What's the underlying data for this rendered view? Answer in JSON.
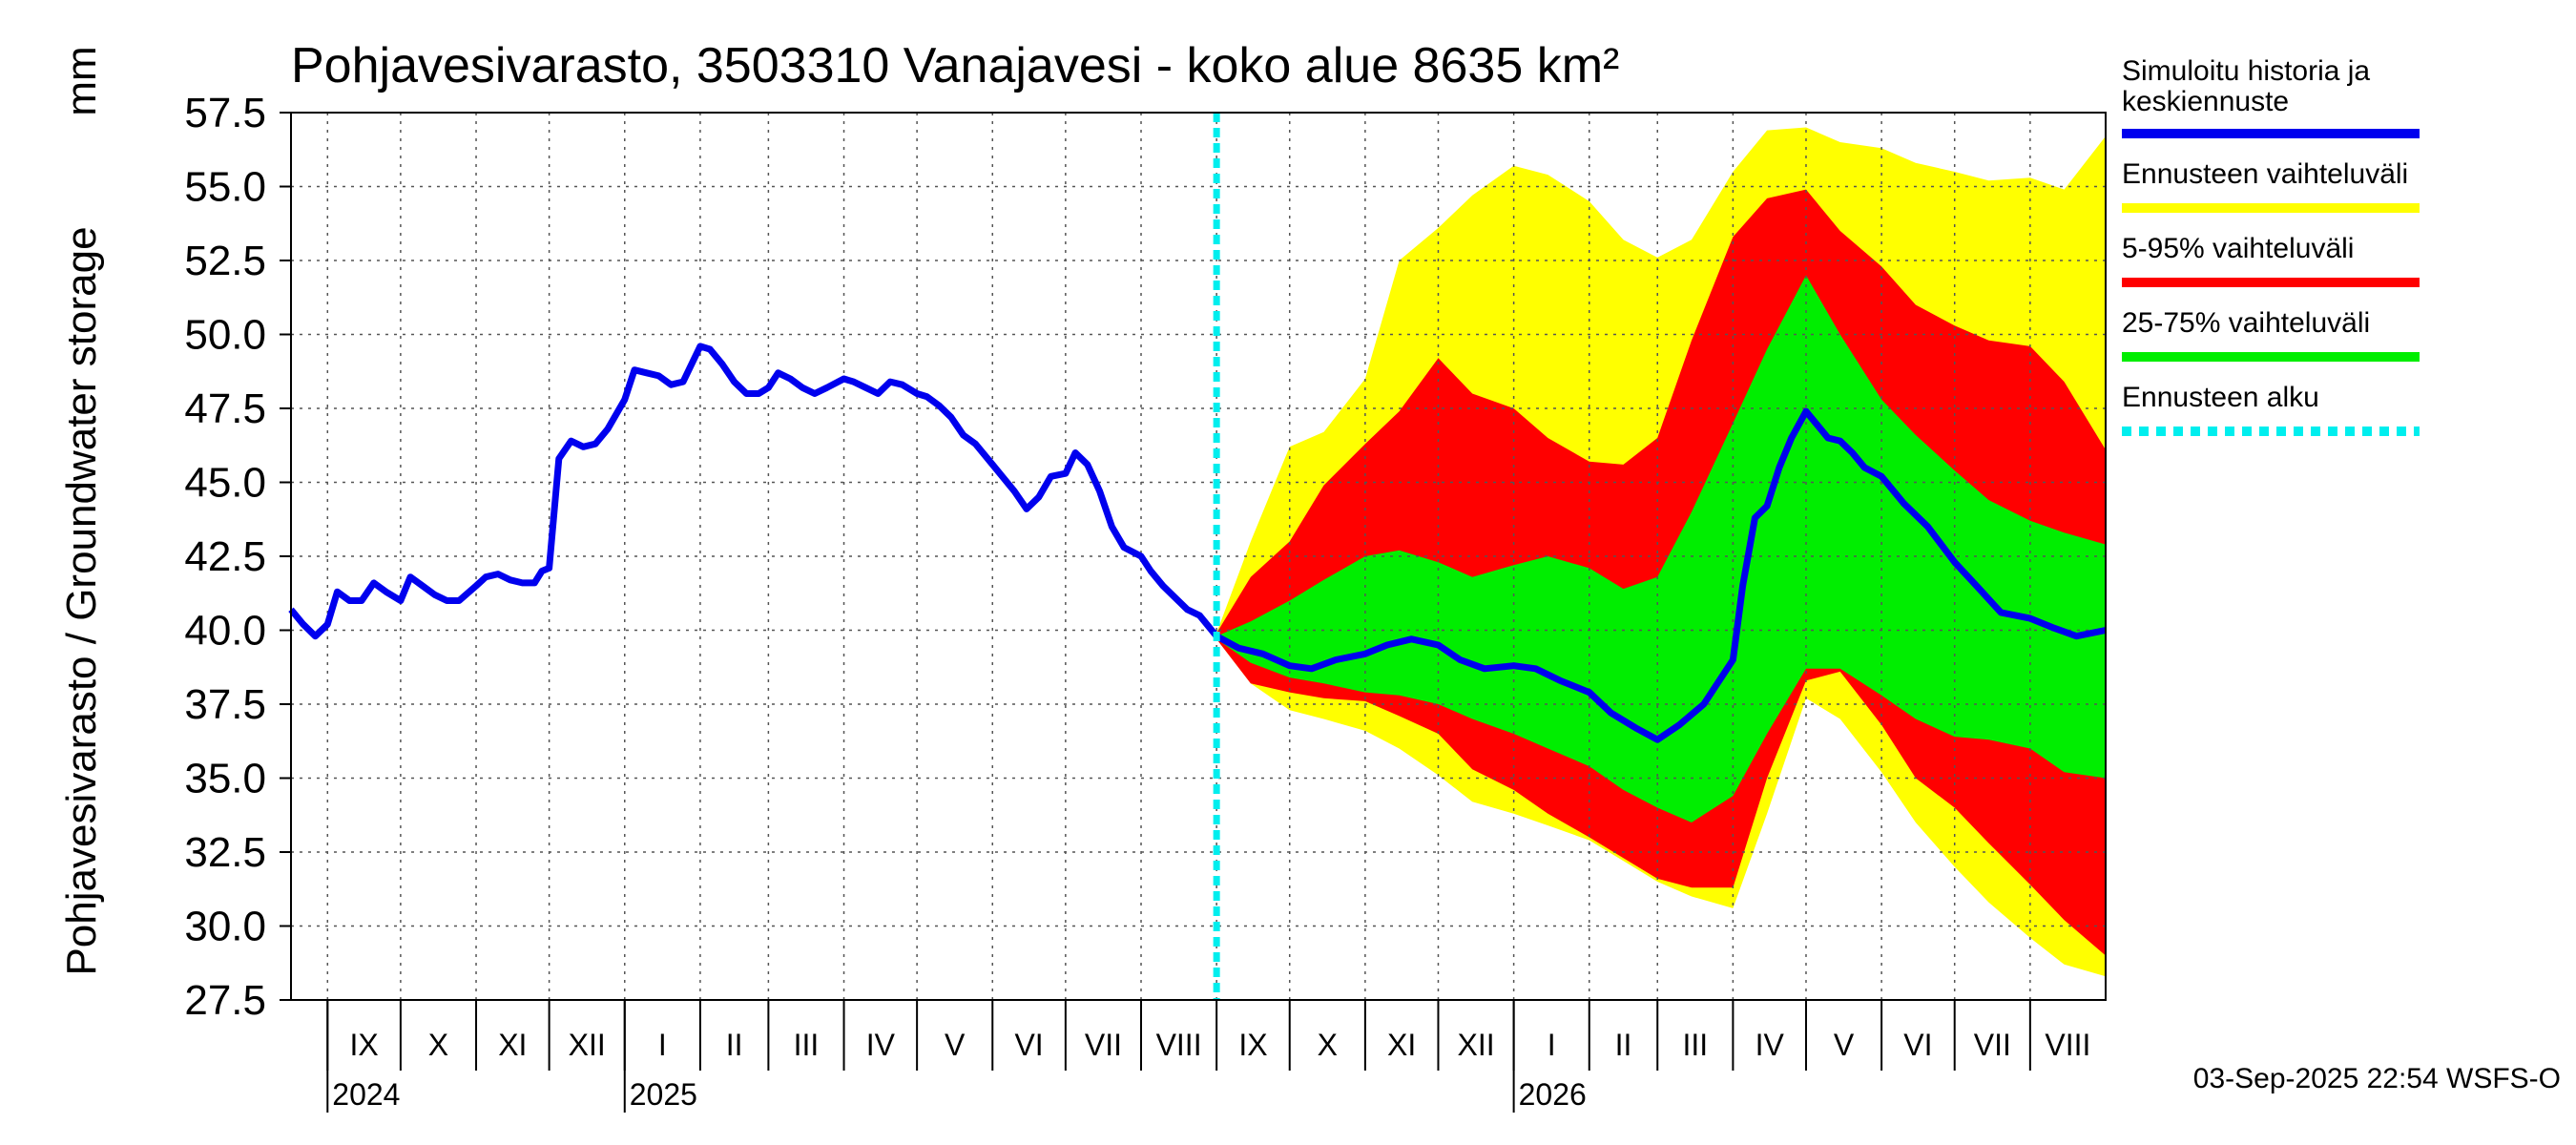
{
  "chart_data": {
    "type": "area",
    "title": "Pohjavesivarasto, 3503310 Vanajavesi - koko alue 8635 km²",
    "ylabel": "Pohjavesivarasto / Groundwater storage",
    "yunit": "mm",
    "ylim": [
      27.5,
      57.5
    ],
    "yticks": [
      "27.5",
      "30.0",
      "32.5",
      "35.0",
      "37.5",
      "40.0",
      "42.5",
      "45.0",
      "47.5",
      "50.0",
      "52.5",
      "55.0",
      "57.5"
    ],
    "xlim": [
      "2024-08-17",
      "2026-09-01"
    ],
    "grid": true,
    "months": [
      {
        "label": "IX",
        "start": "2024-09-01"
      },
      {
        "label": "X",
        "start": "2024-10-01"
      },
      {
        "label": "XI",
        "start": "2024-11-01"
      },
      {
        "label": "XII",
        "start": "2024-12-01"
      },
      {
        "label": "I",
        "start": "2025-01-01"
      },
      {
        "label": "II",
        "start": "2025-02-01"
      },
      {
        "label": "III",
        "start": "2025-03-01"
      },
      {
        "label": "IV",
        "start": "2025-04-01"
      },
      {
        "label": "V",
        "start": "2025-05-01"
      },
      {
        "label": "VI",
        "start": "2025-06-01"
      },
      {
        "label": "VII",
        "start": "2025-07-01"
      },
      {
        "label": "VIII",
        "start": "2025-08-01"
      },
      {
        "label": "IX",
        "start": "2025-09-01"
      },
      {
        "label": "X",
        "start": "2025-10-01"
      },
      {
        "label": "XI",
        "start": "2025-11-01"
      },
      {
        "label": "XII",
        "start": "2025-12-01"
      },
      {
        "label": "I",
        "start": "2026-01-01"
      },
      {
        "label": "II",
        "start": "2026-02-01"
      },
      {
        "label": "III",
        "start": "2026-03-01"
      },
      {
        "label": "IV",
        "start": "2026-04-01"
      },
      {
        "label": "V",
        "start": "2026-05-01"
      },
      {
        "label": "VI",
        "start": "2026-06-01"
      },
      {
        "label": "VII",
        "start": "2026-07-01"
      },
      {
        "label": "VIII",
        "start": "2026-08-01"
      }
    ],
    "years": [
      {
        "label": "2024",
        "date": "2024-09-01"
      },
      {
        "label": "2025",
        "date": "2025-01-01"
      },
      {
        "label": "2026",
        "date": "2026-01-01"
      }
    ],
    "forecast_start": "2025-09-01",
    "history": {
      "x": [
        "2024-08-17",
        "2024-08-22",
        "2024-08-27",
        "2024-09-01",
        "2024-09-05",
        "2024-09-10",
        "2024-09-15",
        "2024-09-20",
        "2024-09-25",
        "2024-10-01",
        "2024-10-05",
        "2024-10-10",
        "2024-10-15",
        "2024-10-20",
        "2024-10-25",
        "2024-11-01",
        "2024-11-05",
        "2024-11-10",
        "2024-11-15",
        "2024-11-20",
        "2024-11-25",
        "2024-11-28",
        "2024-12-01",
        "2024-12-05",
        "2024-12-10",
        "2024-12-15",
        "2024-12-20",
        "2024-12-25",
        "2025-01-01",
        "2025-01-05",
        "2025-01-10",
        "2025-01-15",
        "2025-01-20",
        "2025-01-25",
        "2025-02-01",
        "2025-02-05",
        "2025-02-10",
        "2025-02-15",
        "2025-02-20",
        "2025-02-25",
        "2025-03-01",
        "2025-03-05",
        "2025-03-10",
        "2025-03-15",
        "2025-03-20",
        "2025-03-25",
        "2025-04-01",
        "2025-04-05",
        "2025-04-10",
        "2025-04-15",
        "2025-04-20",
        "2025-04-25",
        "2025-05-01",
        "2025-05-05",
        "2025-05-10",
        "2025-05-15",
        "2025-05-20",
        "2025-05-25",
        "2025-06-01",
        "2025-06-05",
        "2025-06-10",
        "2025-06-15",
        "2025-06-20",
        "2025-06-25",
        "2025-07-01",
        "2025-07-05",
        "2025-07-10",
        "2025-07-15",
        "2025-07-20",
        "2025-07-25",
        "2025-08-01",
        "2025-08-05",
        "2025-08-10",
        "2025-08-15",
        "2025-08-20",
        "2025-08-25",
        "2025-09-01"
      ],
      "y": [
        40.7,
        40.2,
        39.8,
        40.2,
        41.3,
        41.0,
        41.0,
        41.6,
        41.3,
        41.0,
        41.8,
        41.5,
        41.2,
        41.0,
        41.0,
        41.5,
        41.8,
        41.9,
        41.7,
        41.6,
        41.6,
        42.0,
        42.1,
        45.8,
        46.4,
        46.2,
        46.3,
        46.8,
        47.8,
        48.8,
        48.7,
        48.6,
        48.3,
        48.4,
        49.6,
        49.5,
        49.0,
        48.4,
        48.0,
        48.0,
        48.2,
        48.7,
        48.5,
        48.2,
        48.0,
        48.2,
        48.5,
        48.4,
        48.2,
        48.0,
        48.4,
        48.3,
        48.0,
        47.9,
        47.6,
        47.2,
        46.6,
        46.3,
        45.6,
        45.2,
        44.7,
        44.1,
        44.5,
        45.2,
        45.3,
        46.0,
        45.6,
        44.7,
        43.5,
        42.8,
        42.5,
        42.0,
        41.5,
        41.1,
        40.7,
        40.5,
        39.8
      ]
    },
    "series": [
      {
        "name": "Ennusteen vaihteluväli",
        "color": "#ffff00",
        "x": [
          "2025-09-01",
          "2025-09-15",
          "2025-10-01",
          "2025-10-15",
          "2025-11-01",
          "2025-11-15",
          "2025-12-01",
          "2025-12-15",
          "2026-01-01",
          "2026-01-15",
          "2026-02-01",
          "2026-02-15",
          "2026-03-01",
          "2026-03-15",
          "2026-04-01",
          "2026-04-15",
          "2026-05-01",
          "2026-05-15",
          "2026-06-01",
          "2026-06-15",
          "2026-07-01",
          "2026-07-15",
          "2026-08-01",
          "2026-08-15",
          "2026-09-01"
        ],
        "upper": [
          39.9,
          43.0,
          46.2,
          46.7,
          48.5,
          52.5,
          53.6,
          54.7,
          55.7,
          55.4,
          54.5,
          53.2,
          52.6,
          53.2,
          55.5,
          56.9,
          57.0,
          56.5,
          56.3,
          55.8,
          55.5,
          55.2,
          55.3,
          54.9,
          56.7
        ],
        "lower": [
          39.7,
          38.2,
          37.3,
          37.0,
          36.6,
          36.0,
          35.1,
          34.2,
          33.8,
          33.4,
          32.9,
          32.2,
          31.5,
          31.0,
          30.6,
          33.8,
          37.7,
          37.0,
          35.2,
          33.5,
          32.0,
          30.8,
          29.6,
          28.7,
          28.3
        ]
      },
      {
        "name": "5-95% vaihteluväli",
        "color": "#ff0000",
        "x": [
          "2025-09-01",
          "2025-09-15",
          "2025-10-01",
          "2025-10-15",
          "2025-11-01",
          "2025-11-15",
          "2025-12-01",
          "2025-12-15",
          "2026-01-01",
          "2026-01-15",
          "2026-02-01",
          "2026-02-15",
          "2026-03-01",
          "2026-03-15",
          "2026-04-01",
          "2026-04-15",
          "2026-05-01",
          "2026-05-15",
          "2026-06-01",
          "2026-06-15",
          "2026-07-01",
          "2026-07-15",
          "2026-08-01",
          "2026-08-15",
          "2026-09-01"
        ],
        "upper": [
          39.9,
          41.8,
          43.0,
          44.9,
          46.3,
          47.4,
          49.2,
          48.0,
          47.5,
          46.5,
          45.7,
          45.6,
          46.5,
          49.8,
          53.3,
          54.6,
          54.9,
          53.5,
          52.3,
          51.0,
          50.3,
          49.8,
          49.6,
          48.4,
          46.1
        ],
        "lower": [
          39.7,
          38.2,
          37.9,
          37.7,
          37.6,
          37.1,
          36.5,
          35.3,
          34.6,
          33.8,
          33.0,
          32.3,
          31.6,
          31.3,
          31.3,
          35.0,
          38.3,
          38.6,
          36.8,
          35.0,
          34.0,
          32.8,
          31.4,
          30.2,
          29.0
        ]
      },
      {
        "name": "25-75% vaihteluväli",
        "color": "#00ee00",
        "x": [
          "2025-09-01",
          "2025-09-15",
          "2025-10-01",
          "2025-10-15",
          "2025-11-01",
          "2025-11-15",
          "2025-12-01",
          "2025-12-15",
          "2026-01-01",
          "2026-01-15",
          "2026-02-01",
          "2026-02-15",
          "2026-03-01",
          "2026-03-15",
          "2026-04-01",
          "2026-04-15",
          "2026-05-01",
          "2026-05-15",
          "2026-06-01",
          "2026-06-15",
          "2026-07-01",
          "2026-07-15",
          "2026-08-01",
          "2026-08-15",
          "2026-09-01"
        ],
        "upper": [
          39.8,
          40.3,
          41.0,
          41.7,
          42.5,
          42.7,
          42.3,
          41.8,
          42.2,
          42.5,
          42.1,
          41.4,
          41.8,
          44.0,
          47.0,
          49.5,
          52.0,
          50.0,
          47.8,
          46.6,
          45.4,
          44.4,
          43.7,
          43.3,
          42.9
        ],
        "lower": [
          39.7,
          38.9,
          38.4,
          38.2,
          37.9,
          37.8,
          37.5,
          37.0,
          36.5,
          36.0,
          35.4,
          34.6,
          34.0,
          33.5,
          34.4,
          36.5,
          38.7,
          38.7,
          37.8,
          37.0,
          36.4,
          36.3,
          36.0,
          35.2,
          35.0
        ]
      }
    ],
    "median": {
      "name": "Simuloitu historia ja keskiennuste",
      "color": "#0000ee",
      "x": [
        "2025-09-01",
        "2025-09-10",
        "2025-09-20",
        "2025-10-01",
        "2025-10-10",
        "2025-10-20",
        "2025-11-01",
        "2025-11-10",
        "2025-11-20",
        "2025-12-01",
        "2025-12-10",
        "2025-12-20",
        "2026-01-01",
        "2026-01-10",
        "2026-01-20",
        "2026-02-01",
        "2026-02-10",
        "2026-02-20",
        "2026-03-01",
        "2026-03-10",
        "2026-03-20",
        "2026-04-01",
        "2026-04-05",
        "2026-04-10",
        "2026-04-15",
        "2026-04-20",
        "2026-04-25",
        "2026-05-01",
        "2026-05-05",
        "2026-05-10",
        "2026-05-15",
        "2026-05-20",
        "2026-05-25",
        "2026-06-01",
        "2026-06-10",
        "2026-06-20",
        "2026-07-01",
        "2026-07-10",
        "2026-07-20",
        "2026-08-01",
        "2026-08-10",
        "2026-08-20",
        "2026-09-01"
      ],
      "y": [
        39.8,
        39.4,
        39.2,
        38.8,
        38.7,
        39.0,
        39.2,
        39.5,
        39.7,
        39.5,
        39.0,
        38.7,
        38.8,
        38.7,
        38.3,
        37.9,
        37.2,
        36.7,
        36.3,
        36.8,
        37.5,
        39.0,
        41.5,
        43.8,
        44.2,
        45.5,
        46.5,
        47.4,
        47.0,
        46.5,
        46.4,
        46.0,
        45.5,
        45.2,
        44.3,
        43.5,
        42.3,
        41.5,
        40.6,
        40.4,
        40.1,
        39.8,
        40.0
      ]
    },
    "legend": [
      {
        "label": "Simuloitu historia ja keskiennuste",
        "color": "#0000ee",
        "style": "solid"
      },
      {
        "label": "Ennusteen vaihteluväli",
        "color": "#ffff00",
        "style": "solid"
      },
      {
        "label": "5-95% vaihteluväli",
        "color": "#ff0000",
        "style": "solid"
      },
      {
        "label": "25-75% vaihteluväli",
        "color": "#00ee00",
        "style": "solid"
      },
      {
        "label": "Ennusteen alku",
        "color": "#00eeee",
        "style": "dashed"
      }
    ],
    "legend_position": "right"
  },
  "footer": "03-Sep-2025 22:54 WSFS-O"
}
